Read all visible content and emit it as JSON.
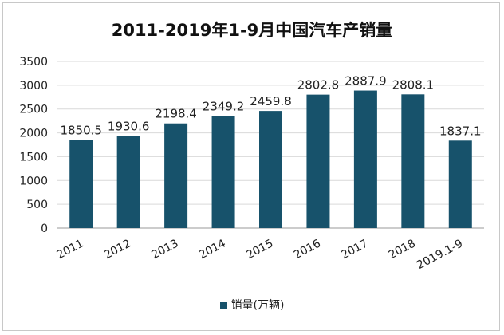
{
  "chart_data": {
    "type": "bar",
    "title": "2011-2019年1-9月中国汽车产销量",
    "categories": [
      "2011",
      "2012",
      "2013",
      "2014",
      "2015",
      "2016",
      "2017",
      "2018",
      "2019.1-9"
    ],
    "series": [
      {
        "name": "销量(万辆)",
        "values": [
          1850.5,
          1930.6,
          2198.4,
          2349.2,
          2459.8,
          2802.8,
          2887.9,
          2808.1,
          1837.1
        ],
        "data_labels": [
          "1850.5",
          "1930.6",
          "2198.4",
          "2349.2",
          "2459.8",
          "2802.8",
          "2887.9",
          "2808.1",
          "1837.1"
        ]
      }
    ],
    "ylim": [
      0,
      3500
    ],
    "yticks": [
      0,
      500,
      1000,
      1500,
      2000,
      2500,
      3000,
      3500
    ],
    "grid": true,
    "legend_position": "bottom",
    "colors": {
      "bar": "#17526b",
      "grid": "#d9d9d9",
      "axis": "#999999"
    }
  }
}
